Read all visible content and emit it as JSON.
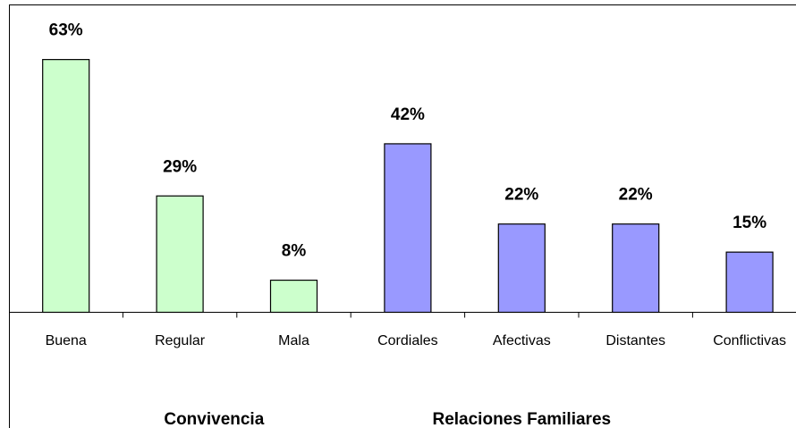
{
  "chart_data": {
    "type": "bar",
    "groups": [
      {
        "label": "Convivencia",
        "color": "#ccffcc",
        "categories": [
          "Buena",
          "Regular",
          "Mala"
        ],
        "values": [
          63,
          29,
          8
        ],
        "value_labels": [
          "63%",
          "29%",
          "8%"
        ]
      },
      {
        "label": "Relaciones Familiares",
        "color": "#9999ff",
        "categories": [
          "Cordiales",
          "Afectivas",
          "Distantes",
          "Conflictivas"
        ],
        "values": [
          42,
          22,
          22,
          15
        ],
        "value_labels": [
          "42%",
          "22%",
          "22%",
          "15%"
        ]
      }
    ]
  }
}
